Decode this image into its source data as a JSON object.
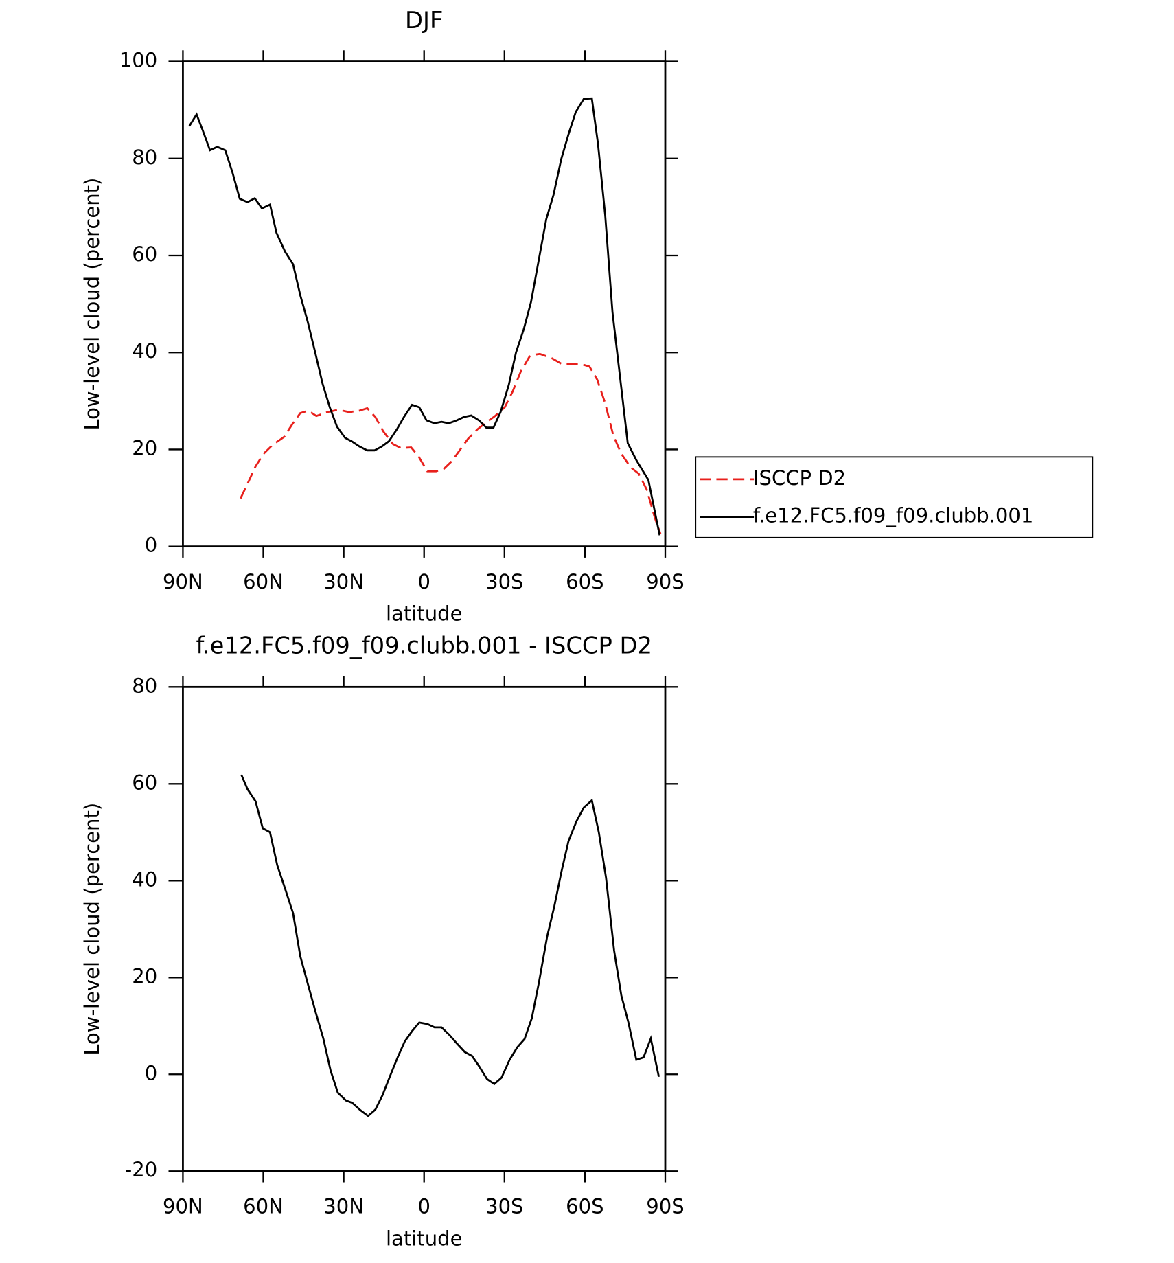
{
  "chart_data": [
    {
      "type": "line",
      "title": "DJF",
      "xlabel": "latitude",
      "ylabel": "Low-level cloud (percent)",
      "xlim": [
        90,
        -90
      ],
      "xticks": [
        {
          "value": 90,
          "label": "90N"
        },
        {
          "value": 60,
          "label": "60N"
        },
        {
          "value": 30,
          "label": "30N"
        },
        0,
        {
          "value": -30,
          "label": "30S"
        },
        {
          "value": -60,
          "label": "60S"
        },
        {
          "value": -90,
          "label": "90S"
        }
      ],
      "ylim": [
        0,
        100
      ],
      "yticks": [
        0,
        20,
        40,
        60,
        80,
        100
      ],
      "legend": "right",
      "series": [
        {
          "name": "ISCCP D2",
          "color": "#e8201c",
          "line_style": "dashed",
          "x": [
            68.5,
            65.9,
            62.9,
            59.9,
            56.6,
            52.2,
            49.2,
            46.2,
            43.2,
            40.2,
            36.1,
            31.9,
            28.0,
            24.1,
            21.2,
            18.2,
            15.2,
            11.6,
            8.7,
            4.8,
            2.1,
            -1.2,
            -4.5,
            -7.4,
            -10.4,
            -13.4,
            -16.4,
            -20.0,
            -23.5,
            -26.5,
            -30.1,
            -33.1,
            -36.1,
            -39.6,
            -43.2,
            -47.4,
            -51.5,
            -55.7,
            -58.7,
            -61.7,
            -64.6,
            -67.6,
            -70.6,
            -73.6,
            -77.1,
            -80.1,
            -83.1,
            -86.1,
            -88.2
          ],
          "values": [
            9.9,
            12.9,
            16.5,
            19.1,
            20.9,
            22.6,
            25.2,
            27.5,
            28.0,
            26.9,
            27.7,
            28.2,
            27.7,
            28.0,
            28.5,
            26.7,
            23.7,
            21.1,
            20.3,
            20.4,
            18.6,
            15.5,
            15.5,
            16.0,
            17.6,
            19.9,
            22.2,
            24.2,
            25.7,
            26.9,
            28.7,
            32.0,
            36.1,
            39.4,
            39.7,
            38.9,
            37.6,
            37.6,
            37.6,
            37.1,
            34.4,
            29.5,
            22.9,
            19.1,
            16.3,
            15.0,
            11.7,
            5.9,
            2.6
          ]
        },
        {
          "name": "f.e12.FC5.f09_f09.clubb.001",
          "color": "#000000",
          "line_style": "solid",
          "x": [
            87.6,
            84.9,
            82.6,
            79.9,
            77.2,
            74.2,
            71.5,
            68.8,
            65.9,
            63.2,
            60.5,
            57.5,
            55.1,
            51.9,
            48.9,
            46.2,
            43.5,
            40.5,
            37.9,
            35.2,
            32.5,
            29.5,
            26.8,
            24.1,
            21.2,
            18.5,
            15.8,
            13.1,
            10.1,
            7.5,
            4.5,
            1.8,
            -0.9,
            -3.9,
            -6.5,
            -9.2,
            -12.2,
            -14.9,
            -17.6,
            -20.5,
            -23.2,
            -25.9,
            -28.6,
            -31.6,
            -34.3,
            -37.2,
            -39.9,
            -42.6,
            -45.6,
            -48.3,
            -51.2,
            -53.9,
            -56.6,
            -59.6,
            -62.6,
            -64.9,
            -67.6,
            -70.3,
            -73.3,
            -76.0,
            -79.2,
            -83.7,
            -87.9
          ],
          "values": [
            86.7,
            89.1,
            85.8,
            81.7,
            82.4,
            81.7,
            77.1,
            71.7,
            71.0,
            71.8,
            69.7,
            70.5,
            64.7,
            60.8,
            58.2,
            51.8,
            46.5,
            39.7,
            33.6,
            28.7,
            24.7,
            22.4,
            21.6,
            20.6,
            19.8,
            19.8,
            20.6,
            21.7,
            24.2,
            26.7,
            29.2,
            28.7,
            26.0,
            25.4,
            25.7,
            25.4,
            26.0,
            26.7,
            27.0,
            26.0,
            24.5,
            24.5,
            27.8,
            33.3,
            40.0,
            44.8,
            50.4,
            58.5,
            67.5,
            72.5,
            79.9,
            85.0,
            89.6,
            92.3,
            92.4,
            83.0,
            68.2,
            48.3,
            34.1,
            21.3,
            17.8,
            13.7,
            2.3
          ]
        }
      ]
    },
    {
      "type": "line",
      "title": "f.e12.FC5.f09_f09.clubb.001 - ISCCP D2",
      "xlabel": "latitude",
      "ylabel": "Low-level cloud (percent)",
      "xlim": [
        90,
        -90
      ],
      "xticks": [
        {
          "value": 90,
          "label": "90N"
        },
        {
          "value": 60,
          "label": "60N"
        },
        {
          "value": 30,
          "label": "30N"
        },
        0,
        {
          "value": -30,
          "label": "30S"
        },
        {
          "value": -60,
          "label": "60S"
        },
        {
          "value": -90,
          "label": "90S"
        }
      ],
      "ylim": [
        -20,
        80
      ],
      "yticks": [
        -20,
        0,
        20,
        40,
        60,
        80
      ],
      "color": "#000000",
      "line_style": "solid",
      "x": [
        68.2,
        65.9,
        62.9,
        60.2,
        57.5,
        54.8,
        51.9,
        48.9,
        46.2,
        43.2,
        40.5,
        37.6,
        34.9,
        32.2,
        29.2,
        26.8,
        23.8,
        20.9,
        18.2,
        15.5,
        12.8,
        9.8,
        7.2,
        4.5,
        1.8,
        -1.2,
        -3.9,
        -6.5,
        -9.5,
        -12.2,
        -15.2,
        -17.9,
        -20.5,
        -23.5,
        -26.2,
        -28.9,
        -31.9,
        -34.8,
        -37.5,
        -40.2,
        -42.9,
        -45.9,
        -48.6,
        -51.2,
        -53.9,
        -56.9,
        -59.6,
        -62.6,
        -65.2,
        -67.9,
        -70.9,
        -73.6,
        -76.3,
        -79.2,
        -81.9,
        -84.6,
        -87.6
      ],
      "values": [
        61.9,
        58.9,
        56.4,
        50.8,
        50.0,
        43.2,
        38.4,
        33.3,
        24.4,
        18.3,
        12.9,
        7.4,
        0.8,
        -3.8,
        -5.4,
        -5.9,
        -7.4,
        -8.6,
        -7.3,
        -4.3,
        -0.5,
        3.6,
        6.8,
        8.9,
        10.7,
        10.4,
        9.7,
        9.7,
        8.1,
        6.4,
        4.6,
        3.8,
        1.7,
        -1.0,
        -2.0,
        -0.7,
        3.0,
        5.6,
        7.3,
        11.6,
        19.1,
        28.4,
        34.7,
        41.7,
        48.2,
        52.3,
        55.1,
        56.6,
        50.0,
        40.6,
        25.6,
        16.3,
        10.6,
        3.0,
        3.5,
        7.4,
        -0.5
      ]
    }
  ]
}
